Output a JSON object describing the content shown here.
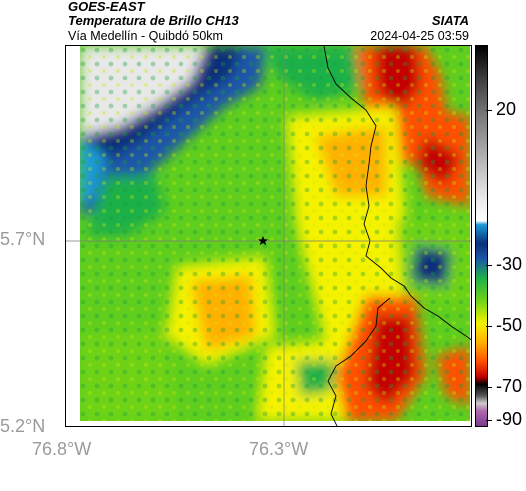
{
  "header": {
    "satellite": "GOES-EAST",
    "product": "Temperatura de Brillo CH13",
    "route": "Vía Medellín - Quibdó 50km",
    "organization": "SIATA",
    "timestamp": "2024-04-25 03:59"
  },
  "map": {
    "lat_ticks": [
      "5.7°N",
      "5.2°N"
    ],
    "lon_ticks": [
      "76.8°W",
      "76.3°W"
    ],
    "marker_icon": "star-icon"
  },
  "colorbar": {
    "ticks": [
      "20",
      "-30",
      "-50",
      "-70",
      "-90"
    ]
  }
}
